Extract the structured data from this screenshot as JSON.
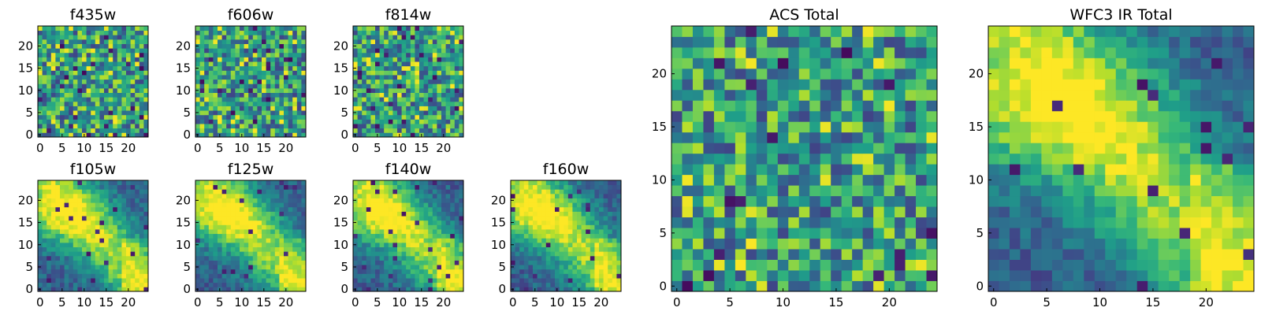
{
  "figure": {
    "colormap": "viridis",
    "colors": {
      "low": "#440154",
      "mid": "#21918c",
      "high": "#fde725"
    }
  },
  "chart_data": [
    {
      "type": "heatmap",
      "title": "f435w",
      "grid_size": 25,
      "x_ticks": [
        0,
        5,
        10,
        15,
        20
      ],
      "y_ticks": [
        0,
        5,
        10,
        15,
        20
      ],
      "xlim": [
        0,
        24
      ],
      "ylim": [
        0,
        24
      ],
      "pattern": "noise",
      "seed": 11
    },
    {
      "type": "heatmap",
      "title": "f606w",
      "grid_size": 25,
      "x_ticks": [
        0,
        5,
        10,
        15,
        20
      ],
      "y_ticks": [
        0,
        5,
        10,
        15,
        20
      ],
      "xlim": [
        0,
        24
      ],
      "ylim": [
        0,
        24
      ],
      "pattern": "noise",
      "seed": 23
    },
    {
      "type": "heatmap",
      "title": "f814w",
      "grid_size": 25,
      "x_ticks": [
        0,
        5,
        10,
        15,
        20
      ],
      "y_ticks": [
        0,
        5,
        10,
        15,
        20
      ],
      "xlim": [
        0,
        24
      ],
      "ylim": [
        0,
        24
      ],
      "pattern": "noise",
      "seed": 37
    },
    {
      "type": "heatmap",
      "title": "f105w",
      "grid_size": 25,
      "x_ticks": [
        0,
        5,
        10,
        15,
        20
      ],
      "y_ticks": [
        0,
        5,
        10,
        15,
        20
      ],
      "xlim": [
        0,
        24
      ],
      "ylim": [
        0,
        24
      ],
      "pattern": "ir",
      "seed": 41
    },
    {
      "type": "heatmap",
      "title": "f125w",
      "grid_size": 25,
      "x_ticks": [
        0,
        5,
        10,
        15,
        20
      ],
      "y_ticks": [
        0,
        5,
        10,
        15,
        20
      ],
      "xlim": [
        0,
        24
      ],
      "ylim": [
        0,
        24
      ],
      "pattern": "ir",
      "seed": 53
    },
    {
      "type": "heatmap",
      "title": "f140w",
      "grid_size": 25,
      "x_ticks": [
        0,
        5,
        10,
        15,
        20
      ],
      "y_ticks": [
        0,
        5,
        10,
        15,
        20
      ],
      "xlim": [
        0,
        24
      ],
      "ylim": [
        0,
        24
      ],
      "pattern": "ir",
      "seed": 67
    },
    {
      "type": "heatmap",
      "title": "f160w",
      "grid_size": 25,
      "x_ticks": [
        0,
        5,
        10,
        15,
        20
      ],
      "y_ticks": [
        0,
        5,
        10,
        15,
        20
      ],
      "xlim": [
        0,
        24
      ],
      "ylim": [
        0,
        24
      ],
      "pattern": "ir",
      "seed": 79
    },
    {
      "type": "heatmap",
      "title": "ACS Total",
      "grid_size": 25,
      "x_ticks": [
        0,
        5,
        10,
        15,
        20
      ],
      "y_ticks": [
        0,
        5,
        10,
        15,
        20
      ],
      "xlim": [
        0,
        24
      ],
      "ylim": [
        0,
        24
      ],
      "pattern": "noise",
      "seed": 97
    },
    {
      "type": "heatmap",
      "title": "WFC3 IR Total",
      "grid_size": 25,
      "x_ticks": [
        0,
        5,
        10,
        15,
        20
      ],
      "y_ticks": [
        0,
        5,
        10,
        15,
        20
      ],
      "xlim": [
        0,
        24
      ],
      "ylim": [
        0,
        24
      ],
      "pattern": "ir",
      "seed": 131
    }
  ]
}
